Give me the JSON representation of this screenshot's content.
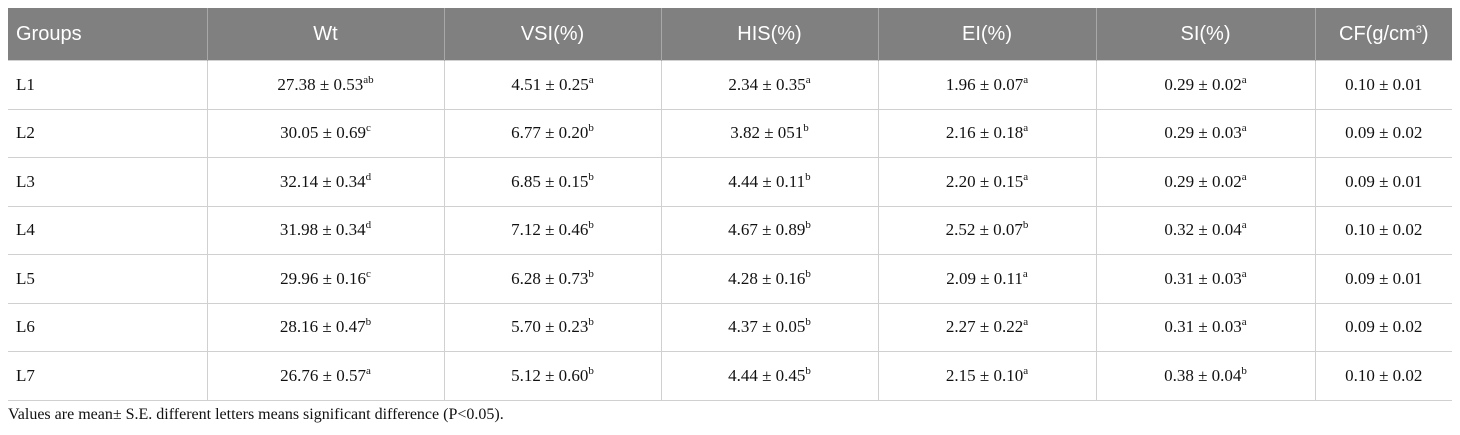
{
  "table": {
    "headers": [
      {
        "text": "Groups"
      },
      {
        "text": "Wt"
      },
      {
        "text": "VSI(%)"
      },
      {
        "text": "HIS(%)"
      },
      {
        "text": "EI(%)"
      },
      {
        "text": "SI(%)"
      },
      {
        "text": "CF(g/cm",
        "sup": "3",
        "tail": ")"
      }
    ],
    "rows": [
      {
        "group": "L1",
        "cells": [
          {
            "text": "27.38 ± 0.53",
            "sup": "ab"
          },
          {
            "text": "4.51 ± 0.25",
            "sup": "a"
          },
          {
            "text": "2.34 ± 0.35",
            "sup": "a"
          },
          {
            "text": "1.96 ± 0.07",
            "sup": "a"
          },
          {
            "text": "0.29 ± 0.02",
            "sup": "a"
          },
          {
            "text": "0.10 ± 0.01"
          }
        ]
      },
      {
        "group": "L2",
        "cells": [
          {
            "text": "30.05 ± 0.69",
            "sup": "c"
          },
          {
            "text": "6.77 ± 0.20",
            "sup": "b"
          },
          {
            "text": "3.82 ± 051",
            "sup": "b"
          },
          {
            "text": "2.16 ± 0.18",
            "sup": "a"
          },
          {
            "text": "0.29 ± 0.03",
            "sup": "a"
          },
          {
            "text": "0.09 ± 0.02"
          }
        ]
      },
      {
        "group": "L3",
        "cells": [
          {
            "text": "32.14 ± 0.34",
            "sup": "d"
          },
          {
            "text": "6.85 ± 0.15",
            "sup": "b"
          },
          {
            "text": "4.44 ± 0.11",
            "sup": "b"
          },
          {
            "text": "2.20 ± 0.15",
            "sup": "a"
          },
          {
            "text": "0.29 ± 0.02",
            "sup": "a"
          },
          {
            "text": "0.09 ± 0.01"
          }
        ]
      },
      {
        "group": "L4",
        "cells": [
          {
            "text": "31.98 ± 0.34",
            "sup": "d"
          },
          {
            "text": "7.12 ± 0.46",
            "sup": "b"
          },
          {
            "text": "4.67 ± 0.89",
            "sup": "b"
          },
          {
            "text": "2.52 ± 0.07",
            "sup": "b"
          },
          {
            "text": "0.32 ± 0.04",
            "sup": "a"
          },
          {
            "text": "0.10 ± 0.02"
          }
        ]
      },
      {
        "group": "L5",
        "cells": [
          {
            "text": "29.96 ± 0.16",
            "sup": "c"
          },
          {
            "text": "6.28 ± 0.73",
            "sup": "b"
          },
          {
            "text": "4.28 ± 0.16",
            "sup": "b"
          },
          {
            "text": "2.09 ± 0.11",
            "sup": "a"
          },
          {
            "text": "0.31 ± 0.03",
            "sup": "a"
          },
          {
            "text": "0.09 ± 0.01"
          }
        ]
      },
      {
        "group": "L6",
        "cells": [
          {
            "text": "28.16 ± 0.47",
            "sup": "b"
          },
          {
            "text": "5.70 ± 0.23",
            "sup": "b"
          },
          {
            "text": "4.37 ± 0.05",
            "sup": "b"
          },
          {
            "text": "2.27 ± 0.22",
            "sup": "a"
          },
          {
            "text": "0.31 ± 0.03",
            "sup": "a"
          },
          {
            "text": "0.09 ± 0.02"
          }
        ]
      },
      {
        "group": "L7",
        "cells": [
          {
            "text": "26.76 ± 0.57",
            "sup": "a"
          },
          {
            "text": "5.12 ± 0.60",
            "sup": "b"
          },
          {
            "text": "4.44 ± 0.45",
            "sup": "b"
          },
          {
            "text": "2.15 ± 0.10",
            "sup": "a"
          },
          {
            "text": "0.38 ± 0.04",
            "sup": "b"
          },
          {
            "text": "0.10 ± 0.02"
          }
        ]
      }
    ],
    "footnote": "Values are mean± S.E. different letters means significant difference (P<0.05)."
  }
}
